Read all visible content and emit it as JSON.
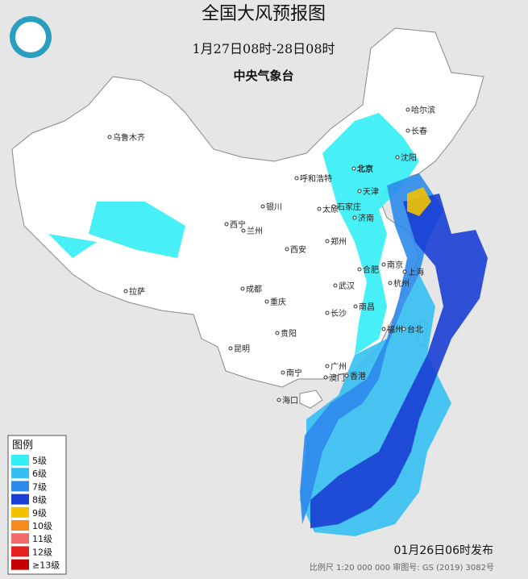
{
  "header": {
    "title": "全国大风预报图",
    "period": "1月27日08时-28日08时",
    "issuer": "中央气象台"
  },
  "map": {
    "cities": [
      "乌鲁木齐",
      "哈尔滨",
      "长春",
      "沈阳",
      "北京",
      "呼和浩特",
      "天津",
      "银川",
      "太原",
      "石家庄",
      "济南",
      "西宁",
      "兰州",
      "郑州",
      "西安",
      "合肥",
      "南京",
      "上海",
      "成都",
      "武汉",
      "杭州",
      "重庆",
      "拉萨",
      "长沙",
      "南昌",
      "福州",
      "台北",
      "贵阳",
      "昆明",
      "广州",
      "南宁",
      "澳门",
      "香港",
      "海口"
    ]
  },
  "legend": {
    "title": "图例",
    "items": [
      {
        "label": "5级",
        "color": "#33eef5"
      },
      {
        "label": "6级",
        "color": "#34bff2"
      },
      {
        "label": "7级",
        "color": "#2d8aeb"
      },
      {
        "label": "8级",
        "color": "#1a3fd4"
      },
      {
        "label": "9级",
        "color": "#f2c200"
      },
      {
        "label": "10级",
        "color": "#f58a1f"
      },
      {
        "label": "11级",
        "color": "#f26a6a"
      },
      {
        "label": "12级",
        "color": "#e42320"
      },
      {
        "label": "≥13级",
        "color": "#c40000"
      }
    ]
  },
  "footer": {
    "issued": "01月26日06时发布",
    "scale": "比例尺 1:20 000 000   审图号: GS (2019) 3082号"
  }
}
